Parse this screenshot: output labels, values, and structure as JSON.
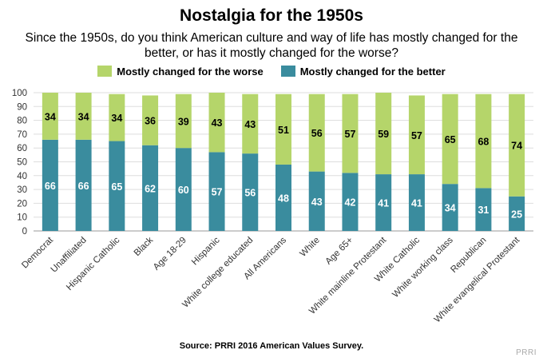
{
  "chart_data": {
    "type": "bar",
    "stacked": true,
    "title": "Nostalgia for the 1950s",
    "subtitle": "Since the 1950s, do you think American culture and way of life has mostly changed for the better, or has it mostly changed for the worse?",
    "categories": [
      "Democrat",
      "Unaffiliated",
      "Hispanic Catholic",
      "Black",
      "Age 18-29",
      "Hispanic",
      "White college educated",
      "All Americans",
      "White",
      "Age 65+",
      "White mainline Protestant",
      "White Catholic",
      "White working class",
      "Republican",
      "White evangelical Protestant"
    ],
    "series": [
      {
        "name": "Mostly changed for the better",
        "color": "#3a8c9e",
        "values": [
          66,
          66,
          65,
          62,
          60,
          57,
          56,
          48,
          43,
          42,
          41,
          41,
          34,
          31,
          25
        ]
      },
      {
        "name": "Mostly changed for the worse",
        "color": "#b5d56a",
        "values": [
          34,
          34,
          34,
          36,
          39,
          43,
          43,
          51,
          56,
          57,
          59,
          57,
          65,
          68,
          74
        ]
      }
    ],
    "legend": [
      "Mostly changed for the worse",
      "Mostly changed for the better"
    ],
    "ylim": [
      0,
      100
    ],
    "yticks": [
      0,
      10,
      20,
      30,
      40,
      50,
      60,
      70,
      80,
      90,
      100
    ],
    "xlabel": "",
    "ylabel": "",
    "source": "Source: PRRI 2016 American Values Survey.",
    "watermark": "PRRI"
  }
}
